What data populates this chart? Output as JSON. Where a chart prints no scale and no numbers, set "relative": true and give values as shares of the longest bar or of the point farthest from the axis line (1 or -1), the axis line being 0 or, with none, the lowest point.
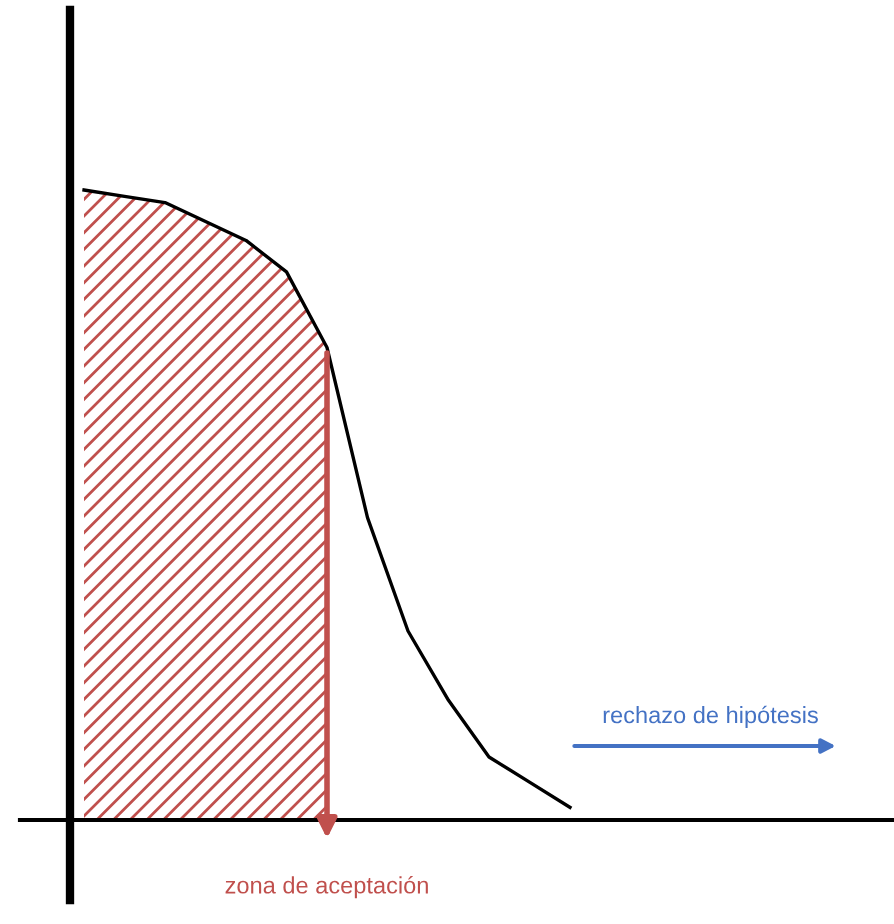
{
  "chart_data": {
    "type": "line",
    "relative": true,
    "categories": [
      null,
      null,
      null,
      null,
      null,
      null,
      null,
      null,
      null,
      null,
      null,
      null,
      null
    ],
    "series": [
      {
        "type": "area",
        "color": "#c0504d",
        "values": [
          1,
          0.99,
          0.98,
          0.95,
          0.92,
          0.87,
          0.75,
          null,
          null,
          null,
          null,
          null,
          null
        ]
      },
      {
        "color": "#000000",
        "values": [
          1,
          0.99,
          0.98,
          0.95,
          0.92,
          0.87,
          0.75,
          0.48,
          0.3,
          0.19,
          0.1,
          0.06,
          0.02
        ]
      }
    ],
    "annotations": [
      "zona de aceptación",
      "rechazo de hipótesis"
    ]
  }
}
